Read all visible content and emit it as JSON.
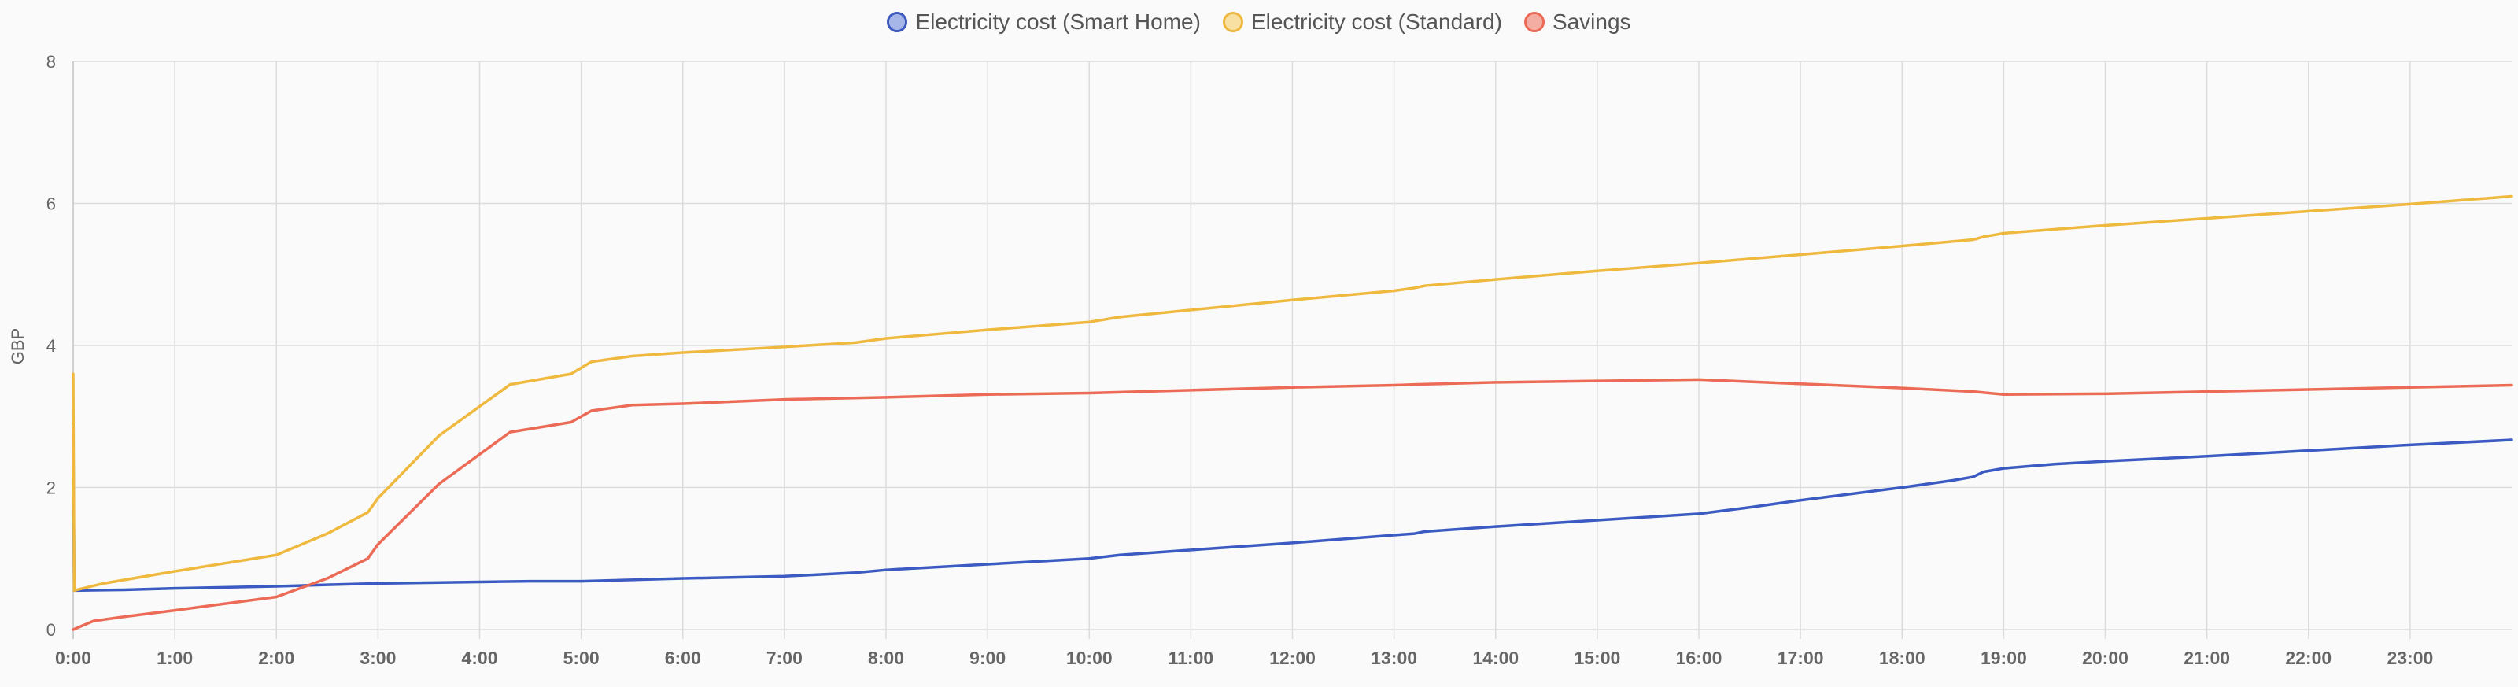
{
  "chart_data": {
    "type": "line",
    "title": "",
    "xlabel": "",
    "ylabel": "GBP",
    "ylim": [
      0,
      8
    ],
    "xlim": [
      0,
      24
    ],
    "y_ticks": [
      "0",
      "2",
      "4",
      "6",
      "8"
    ],
    "x_ticks": [
      "0:00",
      "1:00",
      "2:00",
      "3:00",
      "4:00",
      "5:00",
      "6:00",
      "7:00",
      "8:00",
      "9:00",
      "10:00",
      "11:00",
      "12:00",
      "13:00",
      "14:00",
      "15:00",
      "16:00",
      "17:00",
      "18:00",
      "19:00",
      "20:00",
      "21:00",
      "22:00",
      "23:00"
    ],
    "grid": true,
    "legend_position": "top-center",
    "series": [
      {
        "name": "Electricity cost (Smart Home)",
        "color": "#3b5bc2",
        "fill": "#a7b6e8",
        "x": [
          0,
          0,
          0.01,
          0.5,
          1,
          2,
          2.5,
          3,
          4,
          4.5,
          5,
          6,
          7,
          7.7,
          8,
          8.5,
          9,
          10,
          10.3,
          11,
          12,
          13,
          13.2,
          13.3,
          14,
          15,
          16,
          16.5,
          17,
          18,
          18.5,
          18.7,
          18.8,
          19,
          19.5,
          20,
          21,
          22,
          23,
          24
        ],
        "y": [
          2.85,
          2.85,
          0.55,
          0.56,
          0.58,
          0.61,
          0.63,
          0.65,
          0.67,
          0.68,
          0.68,
          0.72,
          0.75,
          0.8,
          0.84,
          0.88,
          0.92,
          1.0,
          1.05,
          1.12,
          1.22,
          1.33,
          1.35,
          1.38,
          1.45,
          1.54,
          1.63,
          1.72,
          1.82,
          2.0,
          2.1,
          2.15,
          2.22,
          2.27,
          2.33,
          2.37,
          2.44,
          2.52,
          2.6,
          2.67
        ]
      },
      {
        "name": "Electricity cost (Standard)",
        "color": "#efb93f",
        "fill": "#f8e0a2",
        "x": [
          0,
          0,
          0.01,
          0.3,
          1,
          2,
          2.5,
          2.9,
          3.0,
          3.6,
          4.3,
          4.9,
          5.1,
          5.5,
          6,
          7,
          7.7,
          8,
          8.5,
          9,
          10,
          10.3,
          11,
          12,
          13,
          13.2,
          13.3,
          14,
          15,
          16,
          17,
          18,
          18.7,
          18.8,
          19,
          20,
          21,
          22,
          23,
          24
        ],
        "y": [
          3.6,
          3.6,
          0.55,
          0.65,
          0.82,
          1.05,
          1.35,
          1.65,
          1.85,
          2.73,
          3.45,
          3.6,
          3.77,
          3.85,
          3.9,
          3.98,
          4.04,
          4.1,
          4.16,
          4.22,
          4.33,
          4.4,
          4.5,
          4.64,
          4.77,
          4.81,
          4.84,
          4.93,
          5.05,
          5.16,
          5.28,
          5.4,
          5.49,
          5.53,
          5.58,
          5.69,
          5.79,
          5.89,
          5.99,
          6.1
        ]
      },
      {
        "name": "Savings",
        "color": "#ec6b56",
        "fill": "#f3ada3",
        "x": [
          0,
          0.2,
          0.5,
          1,
          2,
          2.5,
          2.9,
          3.0,
          3.6,
          4.3,
          4.9,
          5.1,
          5.5,
          6,
          7,
          8,
          9,
          10,
          11,
          12,
          13,
          13.2,
          14,
          15,
          16,
          17,
          18,
          18.7,
          19,
          20,
          21,
          22,
          23,
          24
        ],
        "y": [
          0,
          0.12,
          0.18,
          0.27,
          0.46,
          0.72,
          1.0,
          1.2,
          2.05,
          2.78,
          2.92,
          3.08,
          3.16,
          3.18,
          3.24,
          3.27,
          3.31,
          3.33,
          3.37,
          3.41,
          3.44,
          3.45,
          3.48,
          3.5,
          3.52,
          3.46,
          3.4,
          3.35,
          3.31,
          3.32,
          3.35,
          3.38,
          3.41,
          3.44
        ]
      }
    ]
  }
}
